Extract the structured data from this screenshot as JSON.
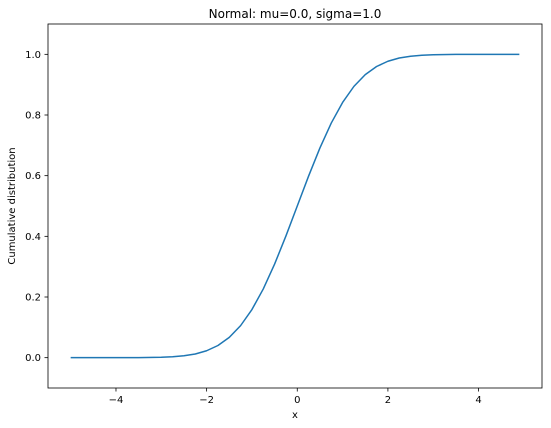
{
  "chart_data": {
    "type": "line",
    "title": "Normal: mu=0.0, sigma=1.0",
    "xlabel": "x",
    "ylabel": "Cumulative distribution",
    "xlim": [
      -5.5,
      5.4
    ],
    "ylim": [
      -0.1,
      1.1
    ],
    "xticks": [
      -4,
      -2,
      0,
      2,
      4
    ],
    "xtick_labels": [
      "−4",
      "−2",
      "0",
      "2",
      "4"
    ],
    "yticks": [
      0.0,
      0.2,
      0.4,
      0.6,
      0.8,
      1.0
    ],
    "ytick_labels": [
      "0.0",
      "0.2",
      "0.4",
      "0.6",
      "0.8",
      "1.0"
    ],
    "grid": false,
    "series": [
      {
        "color": "#1f77b4",
        "x": [
          -5.0,
          -4.5,
          -4.0,
          -3.5,
          -3.0,
          -2.75,
          -2.5,
          -2.25,
          -2.0,
          -1.75,
          -1.5,
          -1.25,
          -1.0,
          -0.75,
          -0.5,
          -0.25,
          0.0,
          0.25,
          0.5,
          0.75,
          1.0,
          1.25,
          1.5,
          1.75,
          2.0,
          2.25,
          2.5,
          2.75,
          3.0,
          3.5,
          4.0,
          4.5,
          4.9
        ],
        "y": [
          0.0,
          0.0,
          0.0,
          0.0002,
          0.0013,
          0.003,
          0.0062,
          0.0122,
          0.0228,
          0.0401,
          0.0668,
          0.1056,
          0.1587,
          0.2266,
          0.3085,
          0.4013,
          0.5,
          0.5987,
          0.6915,
          0.7734,
          0.8413,
          0.8944,
          0.9332,
          0.9599,
          0.9772,
          0.9878,
          0.9938,
          0.997,
          0.9987,
          0.9998,
          1.0,
          1.0,
          1.0
        ]
      }
    ]
  }
}
